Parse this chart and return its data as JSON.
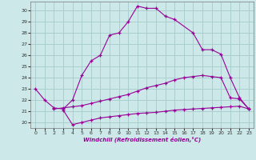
{
  "xlabel": "Windchill (Refroidissement éolien,°C)",
  "bg_color": "#cce8e8",
  "grid_color": "#aacece",
  "line_color": "#990099",
  "xlim": [
    -0.5,
    23.5
  ],
  "ylim": [
    19.5,
    30.8
  ],
  "yticks": [
    20,
    21,
    22,
    23,
    24,
    25,
    26,
    27,
    28,
    29,
    30
  ],
  "xticks": [
    0,
    1,
    2,
    3,
    4,
    5,
    6,
    7,
    8,
    9,
    10,
    11,
    12,
    13,
    14,
    15,
    16,
    17,
    18,
    19,
    20,
    21,
    22,
    23
  ],
  "line1_x": [
    0,
    1,
    2,
    3,
    4,
    5,
    6,
    7,
    8,
    9,
    10,
    11,
    12,
    13,
    14,
    15,
    17,
    18,
    19,
    20,
    21,
    22,
    23
  ],
  "line1_y": [
    23.0,
    22.0,
    21.3,
    21.2,
    22.0,
    24.2,
    25.5,
    26.0,
    27.8,
    28.0,
    29.0,
    30.4,
    30.2,
    30.2,
    29.5,
    29.2,
    28.0,
    26.5,
    26.5,
    26.1,
    24.0,
    22.2,
    21.2
  ],
  "line2_x": [
    2,
    3,
    4,
    5,
    6,
    7,
    8,
    9,
    10,
    11,
    12,
    13,
    14,
    15,
    16,
    17,
    18,
    19,
    20,
    21,
    22,
    23
  ],
  "line2_y": [
    21.2,
    21.3,
    21.4,
    21.5,
    21.7,
    21.9,
    22.1,
    22.3,
    22.5,
    22.8,
    23.1,
    23.3,
    23.5,
    23.8,
    24.0,
    24.1,
    24.2,
    24.1,
    24.0,
    22.2,
    22.1,
    21.2
  ],
  "line3_x": [
    3,
    4,
    5,
    6,
    7,
    8,
    9,
    10,
    11,
    12,
    13,
    14,
    15,
    16,
    17,
    18,
    19,
    20,
    21,
    22,
    23
  ],
  "line3_y": [
    21.1,
    19.8,
    20.0,
    20.2,
    20.4,
    20.5,
    20.6,
    20.7,
    20.8,
    20.85,
    20.9,
    21.0,
    21.1,
    21.15,
    21.2,
    21.25,
    21.3,
    21.35,
    21.4,
    21.45,
    21.2
  ]
}
